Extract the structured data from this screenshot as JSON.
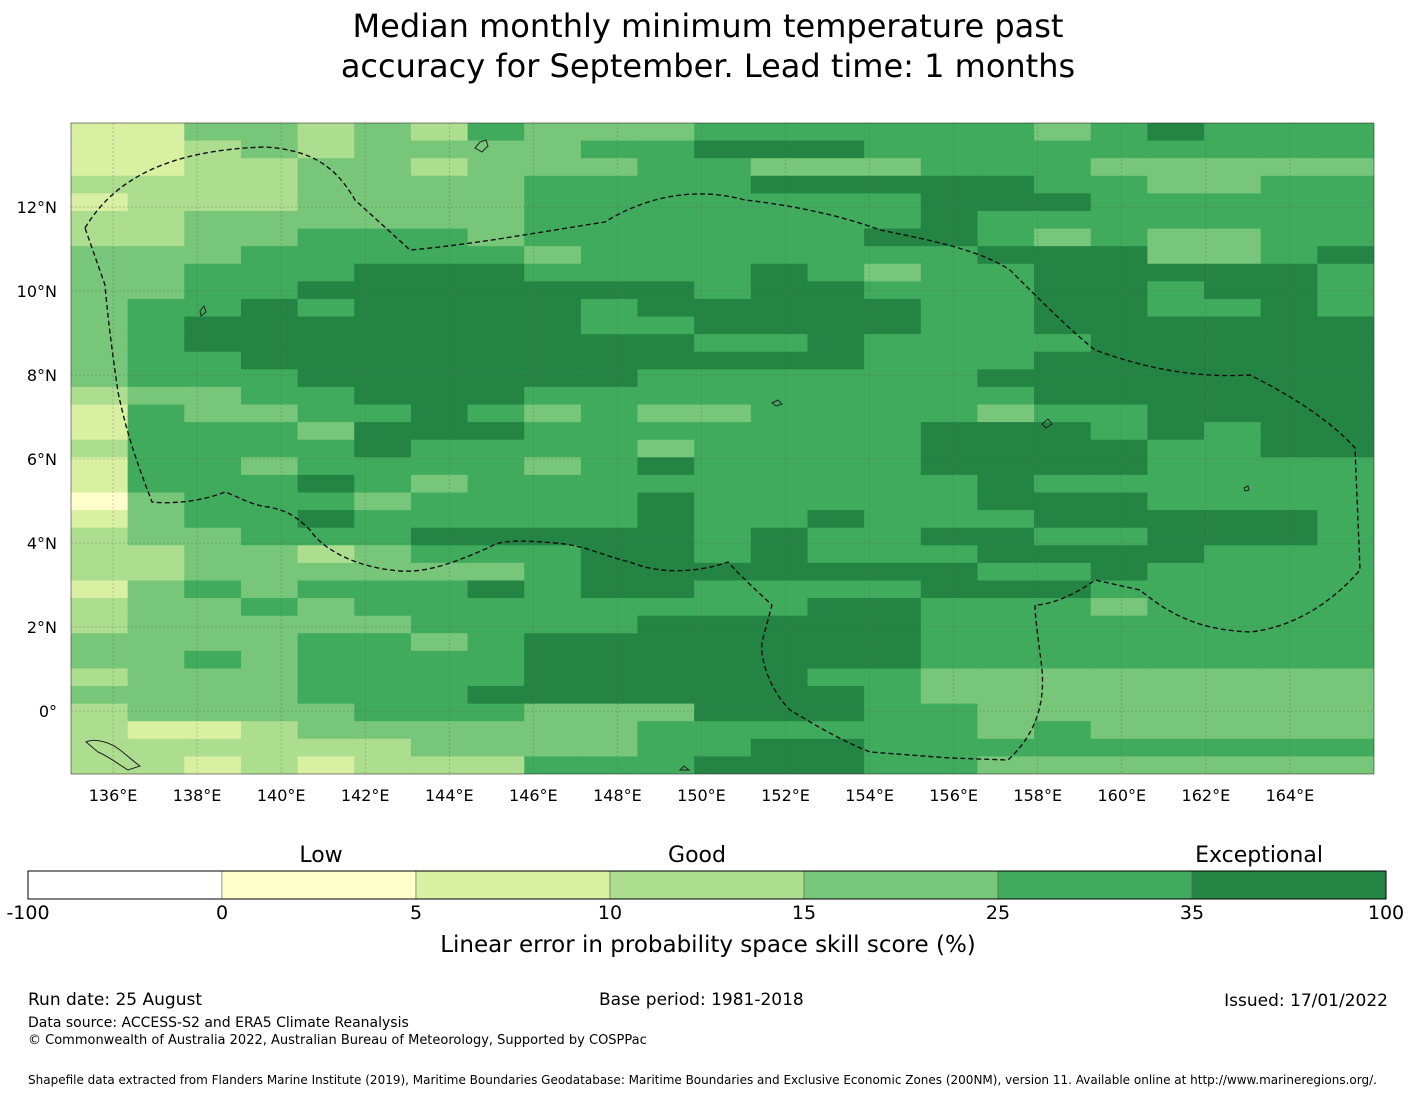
{
  "title_line1": "Median monthly minimum temperature past",
  "title_line2": "accuracy for September. Lead time: 1 months",
  "map": {
    "lon_range": [
      135,
      166
    ],
    "lat_range": [
      -1.5,
      14
    ],
    "lon_ticks": [
      "136°E",
      "138°E",
      "140°E",
      "142°E",
      "144°E",
      "146°E",
      "148°E",
      "150°E",
      "152°E",
      "154°E",
      "156°E",
      "158°E",
      "160°E",
      "162°E",
      "164°E"
    ],
    "lat_ticks": [
      "12°N",
      "10°N",
      "8°N",
      "6°N",
      "4°N",
      "2°N",
      "0°"
    ],
    "category_colors": [
      "#ffffff",
      "#ffffcc",
      "#d9f0a3",
      "#addd8e",
      "#78c679",
      "#41ab5d",
      "#238443"
    ],
    "grid_rows": [
      "22443435444555555456555",
      "22343444455666555555555",
      "22334434445544455544444",
      "33334444555566666554455",
      "23334444555555566655555",
      "33444444555555565555555",
      "33445554555555665454455",
      "44455555455555556664456",
      "44555666555565455666665",
      "44556666666566555665665",
      "45565666656666655665565",
      "45666666655666655666666",
      "45666666666556555566666",
      "45566666666666555666666",
      "45556666665555556666666",
      "34455666555555555666666",
      "25445565454455554556666",
      "25554666555555566656566",
      "35555655554555566665566",
      "25545555456555566665555",
      "25556545555555556555555",
      "14555455556555556665555",
      "24556555556556555666665",
      "34455566666565566556665",
      "33443455566565556666555",
      "33444444566666665565555",
      "24545556566555566655555",
      "34454555555556655545555",
      "34444455556666655555555",
      "44445545666666655555555",
      "44545555666666655555555",
      "34445555666665544444444",
      "44445556666666544444444",
      "34444555444666554444444",
      "32234444445555554544444",
      "33333344445566555555555",
      "33232333555666554444444"
    ],
    "eez_label": "",
    "islands": []
  },
  "colorbar": {
    "words": [
      "Low",
      "Good",
      "Exceptional"
    ],
    "ticks": [
      "-100",
      "0",
      "5",
      "10",
      "15",
      "25",
      "35",
      "100"
    ],
    "label": "Linear error in probability space skill score (%)"
  },
  "footer": {
    "run_date": "Run date: 25 August",
    "base_period": "Base period: 1981-2018",
    "issued": "Issued: 17/01/2022",
    "data_source": "Data source: ACCESS-S2 and ERA5 Climate Reanalysis",
    "copyright": "© Commonwealth of Australia 2022, Australian Bureau of Meteorology, Supported by COSPPac",
    "shapefile": "Shapefile data extracted from Flanders Marine Institute (2019), Maritime Boundaries Geodatabase: Maritime Boundaries and Exclusive Economic Zones (200NM), version 11. Available online at http://www.marineregions.org/."
  }
}
